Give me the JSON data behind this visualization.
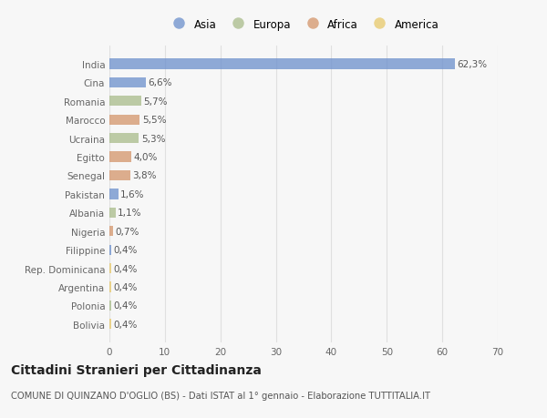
{
  "categories": [
    "India",
    "Cina",
    "Romania",
    "Marocco",
    "Ucraina",
    "Egitto",
    "Senegal",
    "Pakistan",
    "Albania",
    "Nigeria",
    "Filippine",
    "Rep. Dominicana",
    "Argentina",
    "Polonia",
    "Bolivia"
  ],
  "values": [
    62.3,
    6.6,
    5.7,
    5.5,
    5.3,
    4.0,
    3.8,
    1.6,
    1.1,
    0.7,
    0.4,
    0.4,
    0.4,
    0.4,
    0.4
  ],
  "labels": [
    "62,3%",
    "6,6%",
    "5,7%",
    "5,5%",
    "5,3%",
    "4,0%",
    "3,8%",
    "1,6%",
    "1,1%",
    "0,7%",
    "0,4%",
    "0,4%",
    "0,4%",
    "0,4%",
    "0,4%"
  ],
  "colors": [
    "#6b8fcc",
    "#6b8fcc",
    "#a8bc8a",
    "#d4956a",
    "#a8bc8a",
    "#d4956a",
    "#d4956a",
    "#6b8fcc",
    "#a8bc8a",
    "#d4956a",
    "#6b8fcc",
    "#e8c96a",
    "#e8c96a",
    "#a8bc8a",
    "#e8c96a"
  ],
  "legend_labels": [
    "Asia",
    "Europa",
    "Africa",
    "America"
  ],
  "legend_colors": [
    "#6b8fcc",
    "#a8bc8a",
    "#d4956a",
    "#e8c96a"
  ],
  "title": "Cittadini Stranieri per Cittadinanza",
  "subtitle": "COMUNE DI QUINZANO D'OGLIO (BS) - Dati ISTAT al 1° gennaio - Elaborazione TUTTITALIA.IT",
  "xlim": [
    0,
    70
  ],
  "xticks": [
    0,
    10,
    20,
    30,
    40,
    50,
    60,
    70
  ],
  "bg_color": "#f7f7f7",
  "grid_color": "#e0e0e0",
  "bar_height": 0.55,
  "label_fontsize": 7.5,
  "tick_fontsize": 7.5,
  "title_fontsize": 10,
  "subtitle_fontsize": 7.2,
  "legend_fontsize": 8.5
}
